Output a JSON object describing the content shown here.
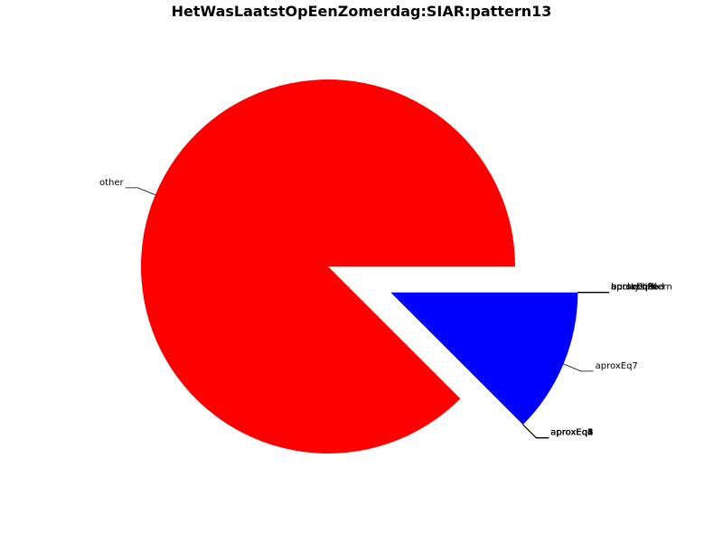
{
  "chart_data": {
    "type": "pie",
    "title": "HetWasLaatstOpEenZomerdag:SIAR:pattern13",
    "slices": [
      {
        "label": "other",
        "value": 0.875,
        "color": "#ff0000",
        "exploded": false
      },
      {
        "label": "aproxEq7",
        "value": 0.125,
        "color": "#0000ff",
        "exploded": true
      }
    ],
    "zero_slice_groups": [
      {
        "labels": [
          "aproxEq1",
          "aproxEq2",
          "aproxEq3",
          "aproxEq4",
          "aproxEq5",
          "aproxEq6",
          "aproxEq8"
        ],
        "at": "boundary-start"
      },
      {
        "labels": [
          "aproxEq0",
          "aproxEq9",
          "aproxEqHi",
          "aproxEqLo",
          "burstyPattern",
          "unclassified"
        ],
        "at": "boundary-end"
      }
    ],
    "legend": "none"
  }
}
